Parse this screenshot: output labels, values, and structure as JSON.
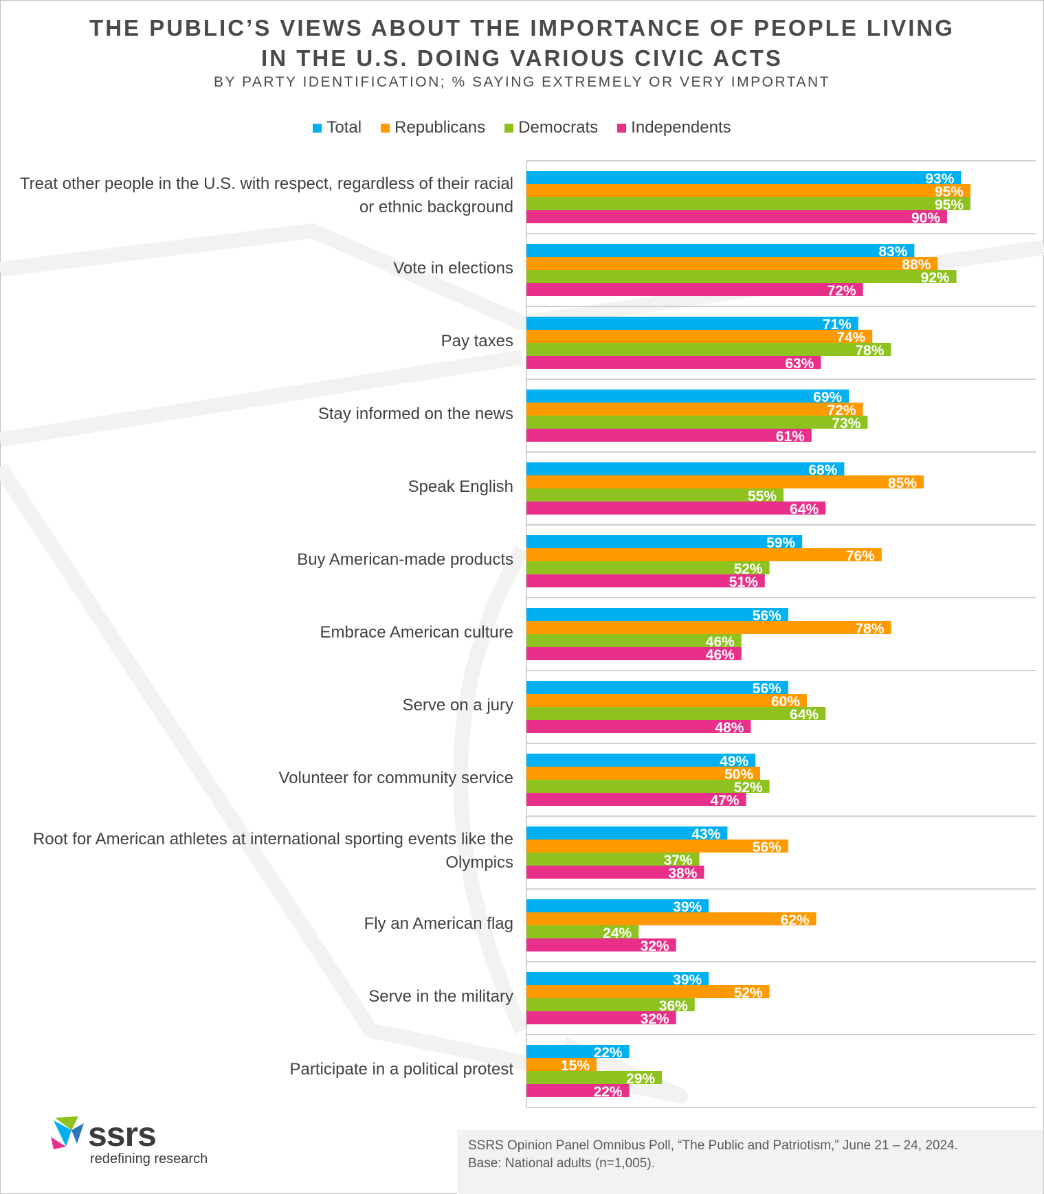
{
  "title_line1": "THE PUBLIC’S VIEWS ABOUT THE IMPORTANCE OF PEOPLE LIVING",
  "title_line2": "IN THE U.S. DOING VARIOUS CIVIC ACTS",
  "subtitle": "BY PARTY IDENTIFICATION; % SAYING EXTREMELY OR VERY IMPORTANT",
  "legend": [
    {
      "name": "Total",
      "color": "#00b0f0"
    },
    {
      "name": "Republicans",
      "color": "#ff9900"
    },
    {
      "name": "Democrats",
      "color": "#8dc21f"
    },
    {
      "name": "Independents",
      "color": "#e8308a"
    }
  ],
  "chart_data": {
    "type": "bar",
    "orientation": "horizontal",
    "title": "THE PUBLIC’S VIEWS ABOUT THE IMPORTANCE OF PEOPLE LIVING IN THE U.S. DOING VARIOUS CIVIC ACTS",
    "subtitle": "BY PARTY IDENTIFICATION; % SAYING EXTREMELY OR VERY IMPORTANT",
    "categories": [
      "Treat other people in the U.S. with respect, regardless of their racial or ethnic background",
      "Vote in elections",
      "Pay taxes",
      "Stay informed on the news",
      "Speak English",
      "Buy American-made products",
      "Embrace American culture",
      "Serve on a jury",
      "Volunteer for community service",
      "Root for American athletes at international sporting events like the Olympics",
      "Fly an American flag",
      "Serve in the military",
      "Participate in a political protest"
    ],
    "series": [
      {
        "name": "Total",
        "color": "#00b0f0",
        "values": [
          93,
          83,
          71,
          69,
          68,
          59,
          56,
          56,
          49,
          43,
          39,
          39,
          22
        ]
      },
      {
        "name": "Republicans",
        "color": "#ff9900",
        "values": [
          95,
          88,
          74,
          72,
          85,
          76,
          78,
          60,
          50,
          56,
          62,
          52,
          15
        ]
      },
      {
        "name": "Democrats",
        "color": "#8dc21f",
        "values": [
          95,
          92,
          78,
          73,
          55,
          52,
          46,
          64,
          52,
          37,
          24,
          36,
          29
        ]
      },
      {
        "name": "Independents",
        "color": "#e8308a",
        "values": [
          90,
          72,
          63,
          61,
          64,
          51,
          46,
          48,
          47,
          38,
          32,
          32,
          22
        ]
      }
    ],
    "value_suffix": "%",
    "xlim": [
      0,
      100
    ],
    "legend_position": "top",
    "grid": false
  },
  "logo": {
    "word": "ssrs",
    "tagline": "redefining research"
  },
  "source": {
    "line1": "SSRS Opinion Panel Omnibus Poll, “The Public and Patriotism,” June 21 – 24, 2024.",
    "line2": "Base: National adults (n=1,005)."
  }
}
